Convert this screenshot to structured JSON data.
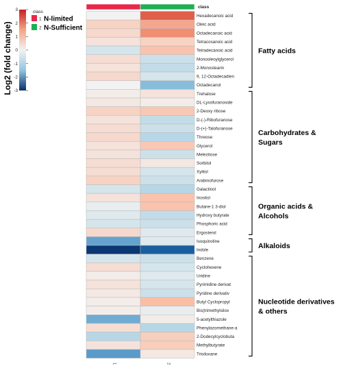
{
  "chart_data": {
    "type": "heatmap",
    "title": "",
    "ylabel": "Log2 (fold change)",
    "legend_title": "class",
    "class_header": "class",
    "class_legend": [
      {
        "index": "1",
        "name": "N-limited",
        "color": "#e8274b"
      },
      {
        "index": "2",
        "name": "N-Sufficient",
        "color": "#1fae54"
      }
    ],
    "column_labels": [
      "1",
      "2"
    ],
    "color_scale": {
      "range": [
        -3,
        3
      ],
      "ticks": [
        "3",
        "2",
        "1",
        "0",
        "-1",
        "-2",
        "-3"
      ],
      "low": "#08306b",
      "mid": "#f2f2f2",
      "high": "#d7301f"
    },
    "rows": [
      "Hexadecanoic acid",
      "Oleic acid",
      "Octadecanoic acid",
      "Tetracosanoic acid",
      "Tetradecanoic acid",
      "Monooleoylglycerol",
      "2-Monostearin",
      "9, 12-Octadecadien",
      "Octadecanol",
      "Trehalose",
      "DL-Lyxofuranoside",
      "2-Deoxy ribose",
      "D-(-)-Ribofuranose",
      "D-(+)-Talofuranose",
      "Threose",
      "Glycerol",
      "Melezitose",
      "Sorbitol",
      "Xylitol",
      "Arabinofurose",
      "Galactinol",
      "Inositol",
      "Butane-1 3-diol",
      "Hydroxy butyrate",
      "Phosphoric acid",
      "Ergosterol",
      "Isoquinoline",
      "Indole",
      "Benzene",
      "Cyclohexene",
      "Uridine",
      "Pyrimidine derivat",
      "Pyridine derivativ",
      "Butyl Cyclopropyl",
      "Bis(trimethylsilox",
      "5-acetylthiazole",
      "Phenylazomethane-a",
      "2-Dodecylcyclobuta",
      "Methylbutyrate",
      "Trisiloxane"
    ],
    "values": [
      [
        0.0,
        2.2
      ],
      [
        0.6,
        1.3
      ],
      [
        0.5,
        1.6
      ],
      [
        0.3,
        0.6
      ],
      [
        -0.3,
        0.9
      ],
      [
        0.4,
        -0.4
      ],
      [
        0.3,
        -0.5
      ],
      [
        0.5,
        -0.3
      ],
      [
        0.0,
        -1.1
      ],
      [
        0.1,
        0.3
      ],
      [
        0.2,
        0.1
      ],
      [
        0.6,
        0.8
      ],
      [
        0.3,
        -0.5
      ],
      [
        0.4,
        -0.4
      ],
      [
        0.5,
        -0.6
      ],
      [
        0.3,
        0.8
      ],
      [
        0.3,
        -0.4
      ],
      [
        0.4,
        0.2
      ],
      [
        0.4,
        -0.3
      ],
      [
        0.6,
        -0.4
      ],
      [
        -0.3,
        -0.6
      ],
      [
        0.3,
        0.9
      ],
      [
        -0.1,
        0.9
      ],
      [
        -0.2,
        -0.5
      ],
      [
        -0.3,
        -0.4
      ],
      [
        0.5,
        -0.2
      ],
      [
        -1.4,
        -0.2
      ],
      [
        -2.9,
        -2.3
      ],
      [
        -0.3,
        -0.4
      ],
      [
        0.4,
        -0.3
      ],
      [
        0.1,
        -0.2
      ],
      [
        0.3,
        -0.3
      ],
      [
        0.2,
        -0.4
      ],
      [
        0.1,
        1.0
      ],
      [
        0.1,
        -0.1
      ],
      [
        -1.3,
        0.1
      ],
      [
        0.4,
        -0.6
      ],
      [
        -0.6,
        0.7
      ],
      [
        0.3,
        0.7
      ],
      [
        -1.5,
        0.2
      ]
    ],
    "groups": [
      {
        "label": [
          "Fatty acids"
        ],
        "start": 0,
        "end": 8
      },
      {
        "label": [
          "Carbohydrates &",
          "Sugars"
        ],
        "start": 9,
        "end": 19
      },
      {
        "label": [
          "Organic acids &",
          "Alcohols"
        ],
        "start": 20,
        "end": 25
      },
      {
        "label": [
          "Alkaloids"
        ],
        "start": 26,
        "end": 27
      },
      {
        "label": [
          "Nucleotide derivatives",
          "& others"
        ],
        "start": 28,
        "end": 39
      }
    ]
  }
}
